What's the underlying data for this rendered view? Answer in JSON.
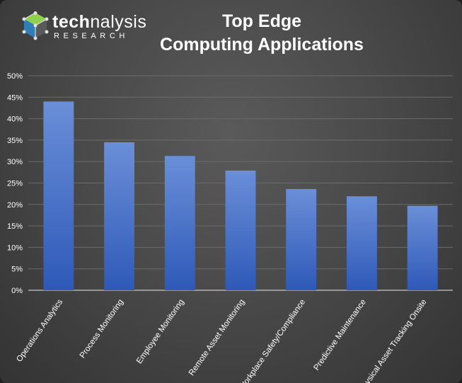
{
  "brand": {
    "name_bold": "tech",
    "name_regular": "nalysis",
    "sub": "RESEARCH"
  },
  "chart_data": {
    "type": "bar",
    "title_line1": "Top Edge",
    "title_line2": "Computing Applications",
    "categories": [
      "Operations Analytics",
      "Process Monitoring",
      "Employee Monitoring",
      "Remote Asset Monitoring",
      "Workplace Safety/Compliance",
      "Predictive Maintenance",
      "Physical Asset Tracking Onsite"
    ],
    "values": [
      44,
      34.5,
      31.3,
      27.9,
      23.6,
      21.9,
      19.7
    ],
    "ylim": [
      0,
      50
    ],
    "yticks": [
      0,
      5,
      10,
      15,
      20,
      25,
      30,
      35,
      40,
      45,
      50
    ],
    "ytick_suffix": "%",
    "grid": true,
    "colors": {
      "bar_top": "#6a8fd8",
      "bar_bottom": "#2e59b8",
      "grid": "#6b6b6b",
      "axis": "#c8c8c8",
      "text": "#ffffff"
    }
  }
}
